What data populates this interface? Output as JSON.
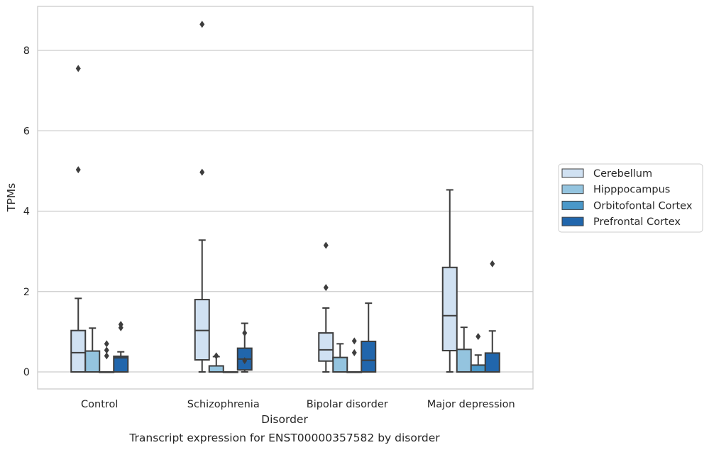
{
  "chart_data": {
    "type": "box",
    "title": "",
    "caption": "Transcript expression for ENST00000357582 by disorder",
    "xlabel": "Disorder",
    "ylabel": "TPMs",
    "ylim": [
      -0.42,
      9.1
    ],
    "yticks": [
      0,
      2,
      4,
      6,
      8
    ],
    "grid": "horizontal",
    "legend_position": "right",
    "categories": [
      "Control",
      "Schizophrenia",
      "Bipolar disorder",
      "Major depression"
    ],
    "series": [
      {
        "name": "Cerebellum",
        "color": "#d0e1f2",
        "boxes": [
          {
            "whisker_low": 0,
            "q1": 0,
            "median": 0.48,
            "q3": 1.03,
            "whisker_high": 1.83,
            "outliers": [
              5.03,
              7.55
            ]
          },
          {
            "whisker_low": 0,
            "q1": 0.3,
            "median": 1.03,
            "q3": 1.8,
            "whisker_high": 3.28,
            "outliers": [
              4.97,
              8.65
            ]
          },
          {
            "whisker_low": 0,
            "q1": 0.27,
            "median": 0.55,
            "q3": 0.97,
            "whisker_high": 1.59,
            "outliers": [
              2.1,
              3.15
            ]
          },
          {
            "whisker_low": 0,
            "q1": 0.53,
            "median": 1.4,
            "q3": 2.6,
            "whisker_high": 4.53,
            "outliers": []
          }
        ]
      },
      {
        "name": "Hipppocampus",
        "color": "#94c4df",
        "boxes": [
          {
            "whisker_low": 0,
            "q1": 0,
            "median": 0,
            "q3": 0.52,
            "whisker_high": 1.09,
            "outliers": []
          },
          {
            "whisker_low": 0,
            "q1": 0,
            "median": 0,
            "q3": 0.15,
            "whisker_high": 0.38,
            "outliers": [
              0.4
            ]
          },
          {
            "whisker_low": 0,
            "q1": 0,
            "median": 0,
            "q3": 0.36,
            "whisker_high": 0.7,
            "outliers": []
          },
          {
            "whisker_low": 0,
            "q1": 0,
            "median": 0,
            "q3": 0.56,
            "whisker_high": 1.11,
            "outliers": []
          }
        ]
      },
      {
        "name": "Orbitofontal Cortex",
        "color": "#4a98c9",
        "boxes": [
          {
            "whisker_low": 0,
            "q1": 0,
            "median": 0,
            "q3": 0,
            "whisker_high": 0,
            "outliers": [
              0.4,
              0.54,
              0.7
            ]
          },
          {
            "whisker_low": 0,
            "q1": 0,
            "median": 0,
            "q3": 0,
            "whisker_high": 0,
            "outliers": []
          },
          {
            "whisker_low": 0,
            "q1": 0,
            "median": 0,
            "q3": 0,
            "whisker_high": 0,
            "outliers": [
              0.48,
              0.77
            ]
          },
          {
            "whisker_low": 0,
            "q1": 0,
            "median": 0,
            "q3": 0.17,
            "whisker_high": 0.42,
            "outliers": [
              0.88
            ]
          }
        ]
      },
      {
        "name": "Prefrontal Cortex",
        "color": "#2166ac",
        "boxes": [
          {
            "whisker_low": 0,
            "q1": 0,
            "median": 0.35,
            "q3": 0.39,
            "whisker_high": 0.5,
            "outliers": [
              1.1,
              1.18
            ]
          },
          {
            "whisker_low": 0,
            "q1": 0.05,
            "median": 0.32,
            "q3": 0.59,
            "whisker_high": 1.21,
            "outliers": [
              0.28,
              0.97
            ]
          },
          {
            "whisker_low": 0,
            "q1": 0,
            "median": 0.29,
            "q3": 0.76,
            "whisker_high": 1.71,
            "outliers": []
          },
          {
            "whisker_low": 0,
            "q1": 0,
            "median": 0,
            "q3": 0.47,
            "whisker_high": 1.02,
            "outliers": [
              2.69
            ]
          }
        ]
      }
    ]
  }
}
